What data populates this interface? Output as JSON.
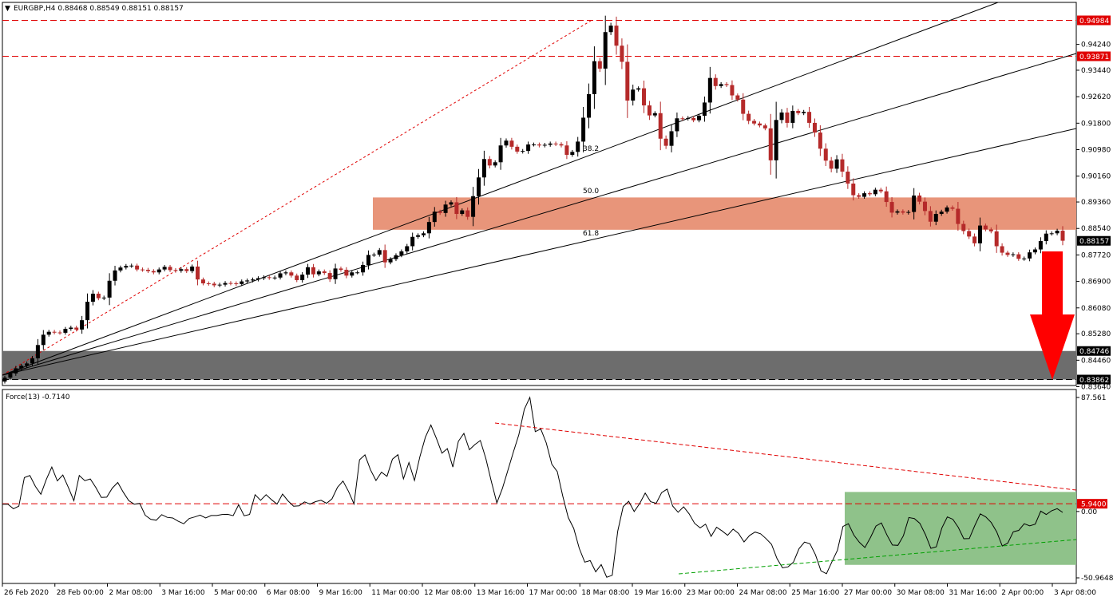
{
  "header": {
    "arrow_glyph": "▼",
    "price_text": "EURGBP,H4  0.88468 0.88549 0.88151 0.88157"
  },
  "indicator": {
    "title": "Force(13) -0.7140"
  },
  "colors": {
    "bull": "#000000",
    "bear": "#b52a2a",
    "zone_resistance": "#e8957a",
    "zone_support": "#6d6d6d",
    "zone_indicator": "#8fc28a",
    "arrow": "#ff0000",
    "trend_red": "#e00000",
    "trend_green": "#00a000",
    "tag_red": "#e00000",
    "tag_black": "#000000"
  },
  "icons": {
    "down_arrow": "down-arrow-icon"
  },
  "chart_data": [
    {
      "type": "candlestick",
      "symbol": "EURGBP",
      "timeframe": "H4",
      "ohlc_last": {
        "open": 0.88468,
        "high": 0.88549,
        "low": 0.88151,
        "close": 0.88157
      },
      "ylim": [
        0.8364,
        0.954
      ],
      "y_ticks": [
        "0.94240",
        "0.93440",
        "0.92620",
        "0.91800",
        "0.90980",
        "0.90160",
        "0.89360",
        "0.88540",
        "0.87720",
        "0.86900",
        "0.86080",
        "0.85280",
        "0.84460",
        "0.83640"
      ],
      "x_ticks": [
        "26 Feb 2020",
        "28 Feb 00:00",
        "2 Mar 08:00",
        "3 Mar 16:00",
        "5 Mar 00:00",
        "6 Mar 08:00",
        "9 Mar 16:00",
        "11 Mar 00:00",
        "12 Mar 08:00",
        "13 Mar 16:00",
        "17 Mar 00:00",
        "18 Mar 08:00",
        "19 Mar 16:00",
        "23 Mar 00:00",
        "24 Mar 08:00",
        "25 Mar 16:00",
        "27 Mar 00:00",
        "30 Mar 08:00",
        "31 Mar 16:00",
        "2 Apr 00:00",
        "3 Apr 08:00"
      ],
      "price_levels": [
        {
          "value": 0.94984,
          "label": "0.94984",
          "style": "dashed-red"
        },
        {
          "value": 0.93871,
          "label": "0.93871",
          "style": "dashed-red"
        },
        {
          "value": 0.88157,
          "label": "0.88157",
          "style": "current"
        },
        {
          "value": 0.84746,
          "label": "0.84746",
          "style": "zone-edge"
        },
        {
          "value": 0.83862,
          "label": "0.83862",
          "style": "dashed-black"
        }
      ],
      "zones": [
        {
          "name": "resistance",
          "from": 0.885,
          "to": 0.895
        },
        {
          "name": "support",
          "from": 0.83862,
          "to": 0.84746
        }
      ],
      "fibonacci_fan_labels": [
        "38.2",
        "50.0",
        "61.8"
      ],
      "closes": [
        0.8392,
        0.8405,
        0.8421,
        0.8429,
        0.8436,
        0.8452,
        0.8493,
        0.8525,
        0.8534,
        0.8532,
        0.8531,
        0.8543,
        0.8547,
        0.8541,
        0.857,
        0.8627,
        0.8652,
        0.8638,
        0.864,
        0.8692,
        0.8724,
        0.8733,
        0.8738,
        0.8739,
        0.8727,
        0.8726,
        0.8722,
        0.8718,
        0.8727,
        0.8735,
        0.8725,
        0.8723,
        0.8728,
        0.8722,
        0.8736,
        0.8696,
        0.8684,
        0.8683,
        0.8678,
        0.868,
        0.8685,
        0.8684,
        0.8682,
        0.869,
        0.8693,
        0.8696,
        0.87,
        0.8703,
        0.8701,
        0.8702,
        0.8715,
        0.8718,
        0.8708,
        0.8694,
        0.8711,
        0.8734,
        0.8712,
        0.8721,
        0.8716,
        0.8697,
        0.873,
        0.8726,
        0.8708,
        0.8718,
        0.8718,
        0.8741,
        0.8772,
        0.8773,
        0.8787,
        0.8749,
        0.8759,
        0.8771,
        0.8783,
        0.8799,
        0.8828,
        0.8833,
        0.8839,
        0.8874,
        0.8906,
        0.8902,
        0.8928,
        0.8935,
        0.8899,
        0.891,
        0.889,
        0.8954,
        0.9012,
        0.9069,
        0.9049,
        0.9059,
        0.9111,
        0.9126,
        0.9107,
        0.9092,
        0.9094,
        0.9114,
        0.9114,
        0.9111,
        0.9113,
        0.9117,
        0.9115,
        0.9111,
        0.9082,
        0.9091,
        0.9123,
        0.9197,
        0.927,
        0.9372,
        0.9349,
        0.9462,
        0.9482,
        0.942,
        0.937,
        0.925,
        0.9284,
        0.9288,
        0.9235,
        0.9204,
        0.9211,
        0.9132,
        0.911,
        0.9155,
        0.9195,
        0.9194,
        0.9196,
        0.9189,
        0.9203,
        0.9244,
        0.932,
        0.9295,
        0.9301,
        0.9298,
        0.9266,
        0.9253,
        0.9209,
        0.9187,
        0.9179,
        0.9173,
        0.9164,
        0.9065,
        0.919,
        0.9213,
        0.9181,
        0.9218,
        0.9211,
        0.9215,
        0.9181,
        0.9151,
        0.9101,
        0.9064,
        0.9039,
        0.9068,
        0.903,
        0.8993,
        0.8957,
        0.8952,
        0.8963,
        0.896,
        0.8974,
        0.8969,
        0.8936,
        0.8903,
        0.8907,
        0.8903,
        0.8905,
        0.8956,
        0.8937,
        0.8908,
        0.8875,
        0.8899,
        0.8906,
        0.8919,
        0.8915,
        0.8868,
        0.8846,
        0.8829,
        0.8808,
        0.8863,
        0.8851,
        0.8845,
        0.8799,
        0.8779,
        0.8772,
        0.8774,
        0.876,
        0.8761,
        0.878,
        0.8789,
        0.8815,
        0.8838,
        0.8839,
        0.8847,
        0.8816
      ]
    },
    {
      "type": "line",
      "title": "Force(13) -0.7140",
      "ylim": [
        -54.06,
        87.561
      ],
      "y_ticks": [
        "87.561",
        "0.00",
        "-50.9648"
      ],
      "levels": [
        {
          "value": 5.94,
          "label": "5.9400",
          "style": "dashed-red"
        }
      ],
      "zones": [
        {
          "name": "accumulation",
          "from": -41,
          "to": 15
        }
      ],
      "values": [
        5.6,
        5.6,
        2.1,
        4.1,
        26.0,
        27.6,
        19.3,
        13.2,
        24.6,
        34.1,
        23.5,
        28.0,
        18.5,
        8.3,
        27.7,
        23.7,
        25.0,
        18.5,
        10.8,
        11.0,
        17.9,
        22.3,
        14.8,
        8.3,
        5.6,
        6.2,
        -2.9,
        -6.0,
        -6.7,
        -2.4,
        -4.5,
        -5.0,
        -7.5,
        -9.4,
        -5.4,
        -4.2,
        -2.8,
        -5.0,
        -3.1,
        -3.1,
        -2.3,
        -2.2,
        -3.2,
        5.2,
        -3.3,
        -2.3,
        12.9,
        8.6,
        12.9,
        9.0,
        5.7,
        13.4,
        8.1,
        4.1,
        4.3,
        7.4,
        5.7,
        7.6,
        8.6,
        6.3,
        9.7,
        18.6,
        23.4,
        15.4,
        5.8,
        39.7,
        43.5,
        32.0,
        23.8,
        30.2,
        27.0,
        40.2,
        43.6,
        25.1,
        37.6,
        23.8,
        42.1,
        57.1,
        66.4,
        56.1,
        44.8,
        48.3,
        34.1,
        53.9,
        60.0,
        47.4,
        51.4,
        54.5,
        40.7,
        23.1,
        6.6,
        17.6,
        31.4,
        45.5,
        58.9,
        78.5,
        87.6,
        61.3,
        63.4,
        52.6,
        36.4,
        30.6,
        11.9,
        -4.6,
        -13.0,
        -28.3,
        -38.9,
        -37.7,
        -46.3,
        -40.8,
        -50.5,
        -49.0,
        -15.1,
        3.7,
        7.8,
        0.0,
        6.1,
        14.1,
        7.5,
        6.3,
        14.5,
        17.2,
        4.2,
        -0.6,
        3.6,
        -1.8,
        -9.1,
        -12.6,
        -9.7,
        -19.1,
        -12.1,
        -14.9,
        -18.3,
        -13.5,
        -16.8,
        -23.4,
        -18.4,
        -15.8,
        -17.1,
        -20.8,
        -25.2,
        -36.2,
        -43.3,
        -42.5,
        -38.9,
        -28.6,
        -23.5,
        -24.8,
        -33.3,
        -45.6,
        -47.8,
        -38.6,
        -29.7,
        -11.5,
        -9.4,
        -18.2,
        -23.7,
        -27.7,
        -20.0,
        -11.2,
        -8.8,
        -18.0,
        -25.8,
        -26.0,
        -18.6,
        -4.6,
        -5.4,
        -9.1,
        -17.6,
        -28.3,
        -27.1,
        -12.8,
        -4.2,
        -6.0,
        -12.3,
        -20.9,
        -20.8,
        -10.8,
        -1.8,
        -4.2,
        -8.5,
        -15.7,
        -26.5,
        -24.3,
        -15.6,
        -14.5,
        -9.4,
        -11.0,
        -9.7,
        0.3,
        -2.3,
        0.6,
        2.2,
        -0.7
      ]
    }
  ]
}
